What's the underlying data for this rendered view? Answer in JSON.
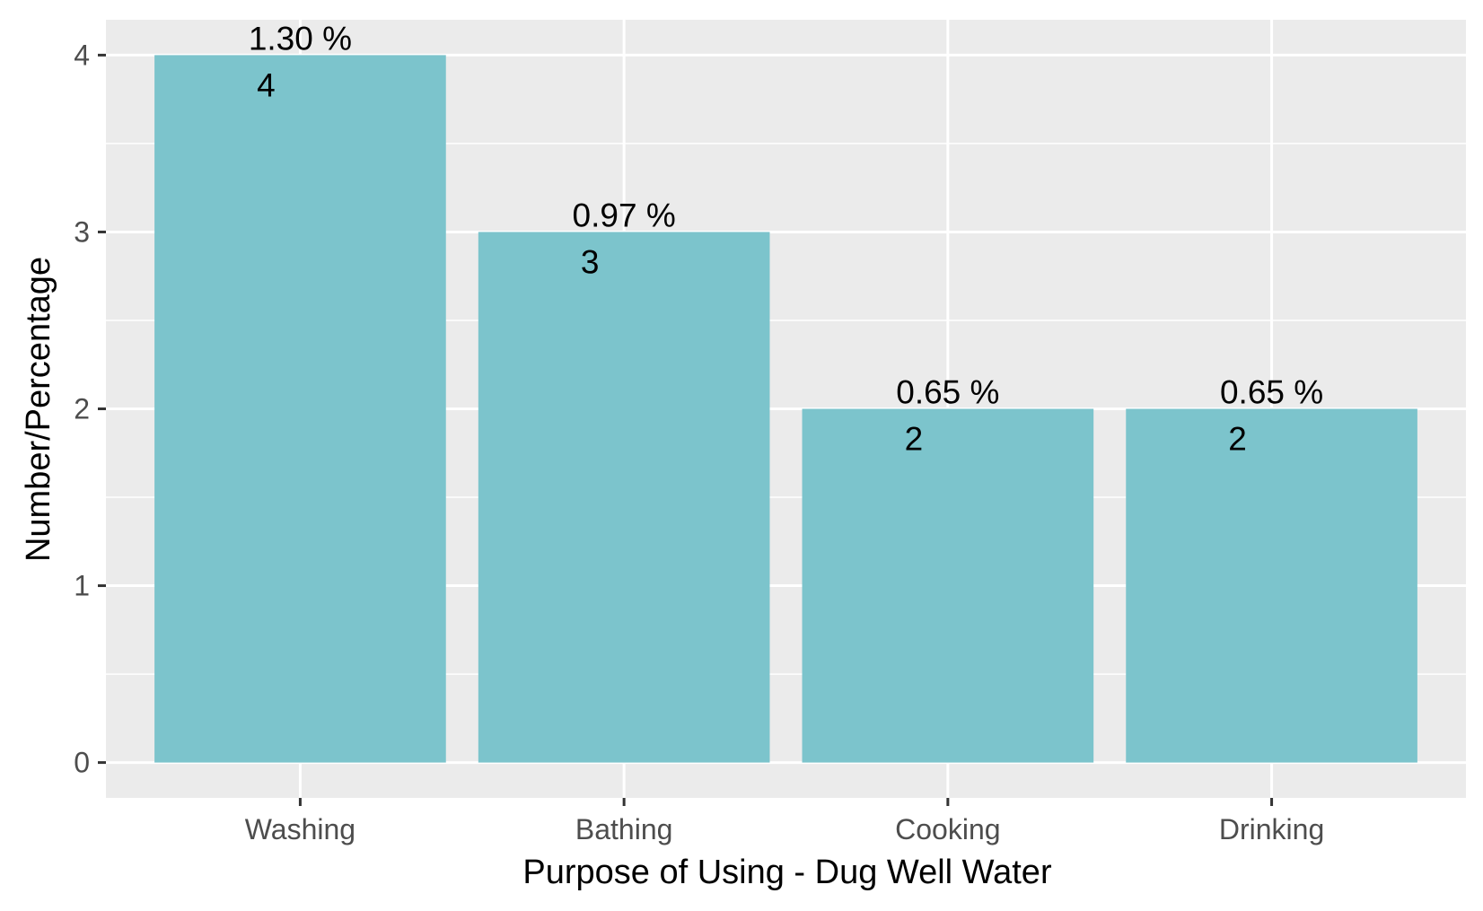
{
  "chart_data": {
    "type": "bar",
    "categories": [
      "Washing",
      "Bathing",
      "Cooking",
      "Drinking"
    ],
    "values": [
      4,
      3,
      2,
      2
    ],
    "value_labels": [
      "4",
      "3",
      "2",
      "2"
    ],
    "percent_labels": [
      "1.30 %",
      "0.97 %",
      "0.65 %",
      "0.65 %"
    ],
    "title": "",
    "xlabel": "Purpose of Using - Dug Well Water",
    "ylabel": "Number/Percentage",
    "ylim": [
      -0.2,
      4.2
    ],
    "y_ticks": [
      0,
      1,
      2,
      3,
      4
    ],
    "y_tick_labels": [
      "0",
      "1",
      "2",
      "3",
      "4"
    ],
    "grid": true,
    "legend": "none",
    "colors": {
      "bar": "#7cc4cc",
      "panel": "#ebebeb",
      "grid": "#ffffff",
      "tick": "#333333"
    }
  }
}
